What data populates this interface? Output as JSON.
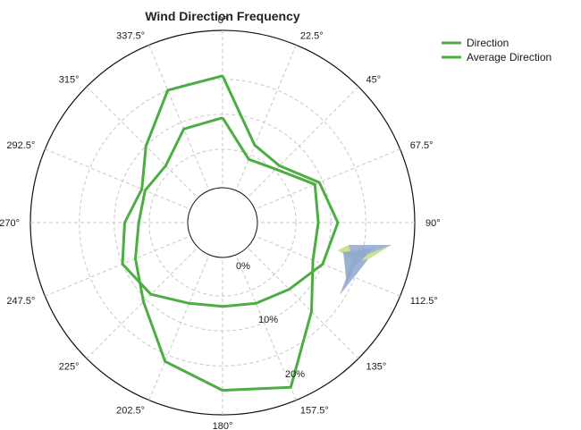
{
  "chart_data": {
    "type": "polar-line",
    "title": "Wind Direction Frequency",
    "angle_labels": [
      "0°",
      "22.5°",
      "45°",
      "67.5°",
      "90°",
      "112.5°",
      "135°",
      "157.5°",
      "180°",
      "202.5°",
      "225°",
      "247.5°",
      "270°",
      "292.5°",
      "315°",
      "337.5°"
    ],
    "angle_values": [
      0,
      22.5,
      45,
      67.5,
      90,
      112.5,
      135,
      157.5,
      180,
      202.5,
      225,
      247.5,
      270,
      292.5,
      315,
      337.5
    ],
    "radial_labels": [
      "0%",
      "10%",
      "20%"
    ],
    "radial_ticks": [
      0,
      10,
      20
    ],
    "radial_range": [
      -5.5,
      22
    ],
    "grid": true,
    "legend_position": "top-right",
    "series": [
      {
        "name": "Direction",
        "color": "#4cad43",
        "points": [
          {
            "angle": 0,
            "value": 9.5
          },
          {
            "angle": 22.5,
            "value": 4.3
          },
          {
            "angle": 45,
            "value": 5.3
          },
          {
            "angle": 67.5,
            "value": 8.8
          },
          {
            "angle": 90,
            "value": 8.2
          },
          {
            "angle": 112.5,
            "value": 8.5
          },
          {
            "angle": 135,
            "value": 12.5
          },
          {
            "angle": 157.5,
            "value": 20
          },
          {
            "angle": 180,
            "value": 18.5
          },
          {
            "angle": 202.5,
            "value": 16
          },
          {
            "angle": 225,
            "value": 10.5
          },
          {
            "angle": 247.5,
            "value": 8
          },
          {
            "angle": 270,
            "value": 6.5
          },
          {
            "angle": 292.5,
            "value": 6.5
          },
          {
            "angle": 315,
            "value": 6
          },
          {
            "angle": 337.5,
            "value": 9
          },
          {
            "angle": 0,
            "value": 9.5
          }
        ]
      },
      {
        "name": "Average Direction",
        "color": "#4cad43",
        "points": [
          {
            "angle": 0,
            "value": 15.5
          },
          {
            "angle": 22.5,
            "value": 6.5
          },
          {
            "angle": 45,
            "value": 6
          },
          {
            "angle": 67.5,
            "value": 9.5
          },
          {
            "angle": 90,
            "value": 11
          },
          {
            "angle": 112.5,
            "value": 10
          },
          {
            "angle": 135,
            "value": 8
          },
          {
            "angle": 157.5,
            "value": 7
          },
          {
            "angle": 180,
            "value": 6.5
          },
          {
            "angle": 202.5,
            "value": 7
          },
          {
            "angle": 225,
            "value": 9
          },
          {
            "angle": 247.5,
            "value": 10
          },
          {
            "angle": 270,
            "value": 8.5
          },
          {
            "angle": 292.5,
            "value": 7
          },
          {
            "angle": 315,
            "value": 10
          },
          {
            "angle": 337.5,
            "value": 15
          },
          {
            "angle": 0,
            "value": 15.5
          }
        ]
      }
    ],
    "marker": {
      "type": "direction-arrow",
      "colors": [
        "#c3dc7a",
        "#8fa8cc"
      ]
    }
  }
}
